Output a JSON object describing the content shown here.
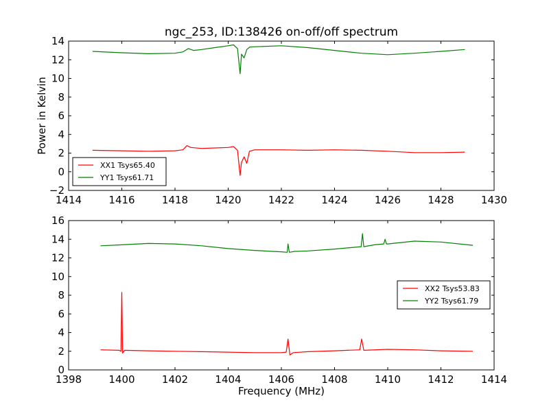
{
  "chart_data": [
    {
      "type": "line",
      "title": "ngc_253, ID:138426 on-off/off spectrum",
      "xlabel": "",
      "ylabel": "Power in Kelvin",
      "xlim": [
        1414,
        1430
      ],
      "ylim": [
        -2,
        14
      ],
      "xticks": [
        "1414",
        "1416",
        "1418",
        "1420",
        "1422",
        "1424",
        "1426",
        "1428",
        "1430"
      ],
      "yticks": [
        "−2",
        "0",
        "2",
        "4",
        "6",
        "8",
        "10",
        "12",
        "14"
      ],
      "grid": false,
      "legend_position": "lower-left",
      "series": [
        {
          "name": "XX1 Tsys65.40",
          "color": "#ff0000",
          "x": [
            1414.9,
            1416.0,
            1417.0,
            1418.0,
            1418.3,
            1418.45,
            1418.6,
            1419.0,
            1419.5,
            1420.0,
            1420.2,
            1420.35,
            1420.45,
            1420.5,
            1420.6,
            1420.7,
            1420.8,
            1421.0,
            1422.0,
            1423.0,
            1424.0,
            1425.0,
            1426.0,
            1427.0,
            1428.0,
            1428.9
          ],
          "y": [
            2.3,
            2.25,
            2.2,
            2.25,
            2.35,
            2.8,
            2.6,
            2.5,
            2.55,
            2.6,
            2.7,
            2.3,
            -0.4,
            1.0,
            1.6,
            0.9,
            2.2,
            2.35,
            2.35,
            2.3,
            2.35,
            2.3,
            2.2,
            2.05,
            2.05,
            2.1
          ]
        },
        {
          "name": "YY1 Tsys61.71",
          "color": "#008000",
          "x": [
            1414.9,
            1416.0,
            1417.0,
            1418.0,
            1418.3,
            1418.5,
            1418.7,
            1419.0,
            1419.5,
            1420.0,
            1420.2,
            1420.35,
            1420.45,
            1420.5,
            1420.6,
            1420.7,
            1420.8,
            1421.0,
            1422.0,
            1423.0,
            1424.0,
            1425.0,
            1426.0,
            1427.0,
            1428.0,
            1428.9
          ],
          "y": [
            12.9,
            12.75,
            12.65,
            12.7,
            12.85,
            13.2,
            13.0,
            13.1,
            13.3,
            13.5,
            13.6,
            13.2,
            10.5,
            12.6,
            12.2,
            13.1,
            13.35,
            13.4,
            13.5,
            13.3,
            13.0,
            12.7,
            12.55,
            12.7,
            12.9,
            13.1
          ]
        }
      ]
    },
    {
      "type": "line",
      "title": "",
      "xlabel": "Frequency (MHz)",
      "ylabel": "",
      "xlim": [
        1398,
        1414
      ],
      "ylim": [
        0,
        16
      ],
      "xticks": [
        "1398",
        "1400",
        "1402",
        "1404",
        "1406",
        "1408",
        "1410",
        "1412",
        "1414"
      ],
      "yticks": [
        "0",
        "2",
        "4",
        "6",
        "8",
        "10",
        "12",
        "14",
        "16"
      ],
      "grid": false,
      "legend_position": "center-right",
      "series": [
        {
          "name": "XX2 Tsys53.83",
          "color": "#ff0000",
          "x": [
            1399.2,
            1399.9,
            1399.97,
            1400.0,
            1400.03,
            1400.1,
            1401.0,
            1402.0,
            1403.0,
            1404.0,
            1405.0,
            1406.0,
            1406.18,
            1406.25,
            1406.32,
            1406.45,
            1407.0,
            1408.0,
            1408.95,
            1409.02,
            1409.1,
            1410.0,
            1411.0,
            1412.0,
            1413.2
          ],
          "y": [
            2.15,
            2.1,
            2.0,
            8.3,
            1.8,
            2.1,
            2.05,
            2.0,
            1.95,
            1.9,
            1.85,
            1.85,
            1.9,
            3.3,
            1.6,
            1.85,
            1.95,
            2.05,
            2.15,
            3.3,
            2.1,
            2.2,
            2.15,
            2.05,
            2.0
          ]
        },
        {
          "name": "YY2 Tsys61.79",
          "color": "#008000",
          "x": [
            1399.2,
            1400.0,
            1401.0,
            1402.0,
            1403.0,
            1404.0,
            1405.0,
            1406.0,
            1406.22,
            1406.25,
            1406.3,
            1406.5,
            1407.0,
            1408.0,
            1409.0,
            1409.05,
            1409.1,
            1409.5,
            1409.85,
            1409.9,
            1409.95,
            1410.0,
            1411.0,
            1412.0,
            1413.2
          ],
          "y": [
            13.3,
            13.4,
            13.55,
            13.5,
            13.3,
            13.0,
            12.8,
            12.65,
            12.6,
            13.5,
            12.6,
            12.7,
            12.75,
            12.95,
            13.2,
            14.6,
            13.2,
            13.4,
            13.5,
            14.0,
            13.5,
            13.5,
            13.8,
            13.7,
            13.35
          ]
        }
      ]
    }
  ]
}
